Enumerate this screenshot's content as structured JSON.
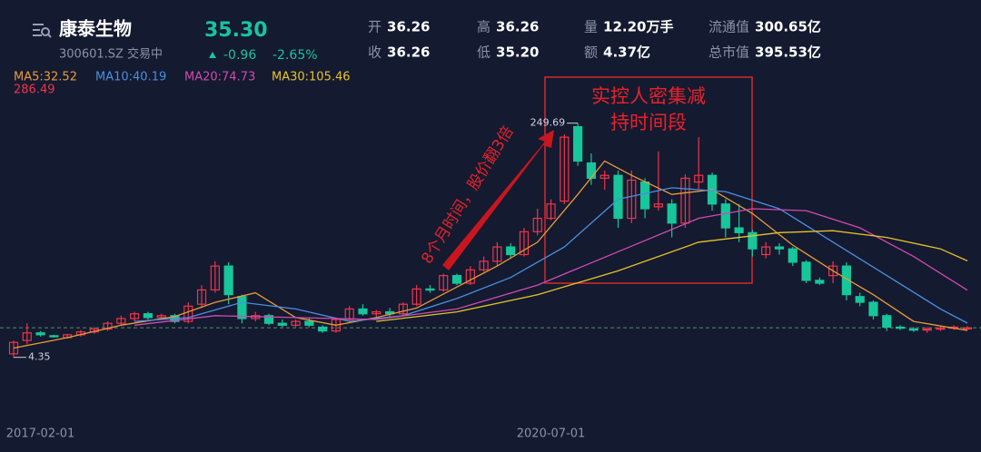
{
  "header": {
    "name": "康泰生物",
    "price": "35.30",
    "code": "300601.SZ 交易中",
    "change": "-0.96",
    "change_pct": "-2.65%",
    "stats": [
      {
        "label": "开",
        "value": "36.26"
      },
      {
        "label": "高",
        "value": "36.26"
      },
      {
        "label": "量",
        "value": "12.20万手"
      },
      {
        "label": "流通值",
        "value": "300.65亿"
      },
      {
        "label": "收",
        "value": "36.26"
      },
      {
        "label": "低",
        "value": "35.20"
      },
      {
        "label": "额",
        "value": "4.37亿"
      },
      {
        "label": "总市值",
        "value": "395.53亿"
      }
    ]
  },
  "chart_data": {
    "type": "candlestick",
    "categories": [
      null,
      null,
      "2017-02-01",
      null,
      null,
      null,
      null,
      null,
      null,
      null,
      null,
      null,
      null,
      null,
      null,
      null,
      null,
      null,
      null,
      null,
      null,
      null,
      null,
      null,
      null,
      null,
      null,
      null,
      null,
      null,
      null,
      null,
      null,
      null,
      null,
      null,
      null,
      null,
      null,
      null,
      "2020-07-01",
      null,
      null,
      null,
      null,
      null,
      null,
      null,
      null,
      null,
      null,
      null,
      null,
      null,
      null,
      null,
      null,
      null,
      null,
      null,
      null,
      null,
      null,
      null,
      null,
      null,
      null,
      null,
      null,
      null,
      null,
      null
    ],
    "open": [
      8,
      22,
      30,
      27,
      25,
      28,
      31,
      34,
      40,
      45,
      50,
      46,
      48,
      42,
      60,
      75,
      100,
      68,
      45,
      48,
      40,
      38,
      42,
      36,
      32,
      44,
      55,
      50,
      52,
      50,
      60,
      76,
      75,
      90,
      82,
      96,
      105,
      120,
      112,
      136,
      150,
      168,
      246,
      208,
      192,
      195,
      150,
      188,
      162,
      165,
      145,
      188,
      195,
      165,
      140,
      135,
      112,
      120,
      118,
      104,
      85,
      90,
      100,
      68,
      62,
      48,
      36,
      34,
      33,
      34,
      35,
      35
    ],
    "high": [
      22,
      40,
      32,
      28,
      29,
      33,
      36,
      42,
      48,
      52,
      52,
      50,
      50,
      62,
      80,
      105,
      104,
      70,
      52,
      50,
      44,
      44,
      46,
      38,
      46,
      58,
      60,
      54,
      56,
      62,
      80,
      80,
      92,
      92,
      100,
      110,
      125,
      124,
      140,
      160,
      170,
      238,
      249.69,
      218,
      200,
      200,
      200,
      192,
      220,
      170,
      196,
      235,
      198,
      170,
      165,
      138,
      125,
      124,
      120,
      106,
      88,
      105,
      104,
      72,
      64,
      50,
      38,
      36,
      36,
      37,
      38,
      37
    ],
    "low": [
      4.35,
      18,
      26,
      25,
      24,
      26,
      29,
      32,
      38,
      42,
      44,
      44,
      40,
      40,
      56,
      72,
      60,
      40,
      42,
      38,
      36,
      36,
      36,
      30,
      30,
      42,
      48,
      46,
      46,
      48,
      58,
      72,
      73,
      80,
      80,
      94,
      100,
      108,
      110,
      132,
      148,
      165,
      205,
      185,
      180,
      140,
      145,
      150,
      158,
      130,
      140,
      180,
      158,
      130,
      125,
      110,
      108,
      112,
      100,
      82,
      80,
      82,
      64,
      58,
      44,
      32,
      33,
      31,
      30,
      32,
      33,
      33
    ],
    "close": [
      20,
      30,
      28,
      26,
      28,
      31,
      34,
      40,
      45,
      50,
      46,
      48,
      42,
      58,
      75,
      100,
      70,
      45,
      48,
      40,
      38,
      42,
      38,
      32,
      44,
      55,
      50,
      52,
      50,
      60,
      76,
      75,
      90,
      82,
      96,
      105,
      120,
      112,
      136,
      150,
      165,
      235,
      210,
      192,
      195,
      150,
      190,
      160,
      165,
      145,
      192,
      195,
      165,
      140,
      135,
      118,
      120,
      118,
      104,
      85,
      82,
      100,
      70,
      62,
      48,
      36,
      35,
      33,
      34,
      35,
      36,
      35.3
    ],
    "up_color": "#f0344a",
    "down_color": "#17c69b",
    "ylim": [
      -58.7,
      286.49
    ],
    "yticks": [
      286.49
    ],
    "series": [
      {
        "name": "MA5:32.52",
        "color": "#e89b3a",
        "x": [
          0,
          4,
          8,
          12,
          15,
          18,
          21,
          24,
          27,
          30,
          33,
          36,
          39,
          42,
          44,
          46,
          49,
          52,
          55,
          58,
          61,
          64,
          67,
          71
        ],
        "values": [
          14,
          25,
          38,
          47,
          62,
          72,
          46,
          38,
          46,
          56,
          78,
          100,
          125,
          175,
          210,
          195,
          175,
          180,
          155,
          122,
          95,
          70,
          42,
          32.52
        ]
      },
      {
        "name": "MA10:40.19",
        "color": "#4a8fe0",
        "x": [
          9,
          13,
          17,
          21,
          25,
          29,
          33,
          37,
          41,
          45,
          49,
          53,
          57,
          61,
          65,
          69,
          71
        ],
        "values": [
          42,
          46,
          62,
          55,
          42,
          48,
          66,
          88,
          120,
          170,
          182,
          178,
          160,
          125,
          90,
          55,
          40.19
        ]
      },
      {
        "name": "MA20:74.73",
        "color": "#d04ab0",
        "x": [
          9,
          15,
          21,
          27,
          33,
          39,
          45,
          51,
          55,
          59,
          63,
          67,
          71
        ],
        "values": [
          38,
          48,
          46,
          44,
          55,
          80,
          115,
          150,
          160,
          158,
          140,
          110,
          74.73
        ]
      },
      {
        "name": "MA30:105.46",
        "color": "#e6c229",
        "x": [
          27,
          33,
          39,
          45,
          51,
          57,
          61,
          65,
          69,
          71
        ],
        "values": [
          42,
          52,
          70,
          95,
          125,
          135,
          137,
          130,
          118,
          105.46
        ]
      }
    ],
    "annotations": [
      "8个月时间，股价翻3倍",
      "实控人密集减",
      "持时间段"
    ]
  }
}
